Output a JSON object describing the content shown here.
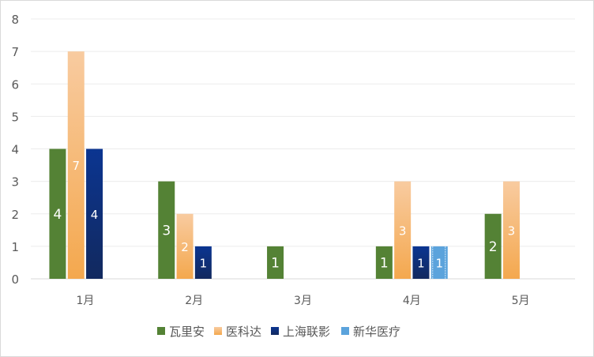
{
  "chart_data": {
    "type": "bar",
    "title": "",
    "xlabel": "",
    "ylabel": "",
    "categories": [
      "1月",
      "2月",
      "3月",
      "4月",
      "5月"
    ],
    "ylim": [
      0,
      8
    ],
    "yticks": [
      0,
      1,
      2,
      3,
      4,
      5,
      6,
      7,
      8
    ],
    "grid": true,
    "legend_position": "bottom",
    "series": [
      {
        "name": "瓦里安",
        "values": [
          4,
          3,
          1,
          1,
          2
        ],
        "color": "#548235",
        "color_end": "#548235"
      },
      {
        "name": "医科达",
        "values": [
          7,
          2,
          0,
          3,
          3
        ],
        "color": "#f8cba0",
        "color_end": "#f4a84e"
      },
      {
        "name": "上海联影",
        "values": [
          4,
          1,
          0,
          1,
          0
        ],
        "color": "#0b3591",
        "color_end": "#12295e"
      },
      {
        "name": "新华医疗",
        "values": [
          0,
          0,
          0,
          1,
          0
        ],
        "color": "#5ba3dc",
        "color_end": "#5ba3dc"
      }
    ]
  }
}
